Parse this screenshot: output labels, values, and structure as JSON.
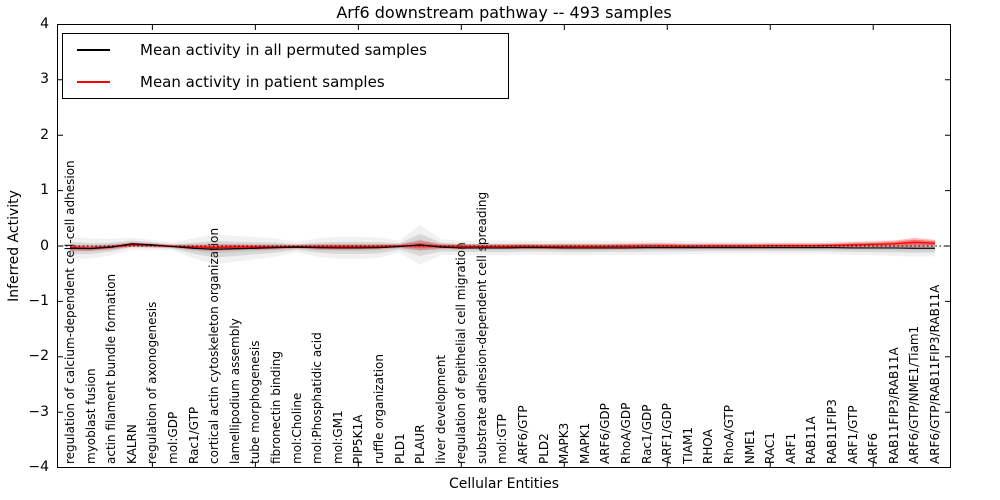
{
  "chart": {
    "yticks": [
      {
        "value": 4,
        "label": "4"
      },
      {
        "value": 3,
        "label": "3"
      },
      {
        "value": 2,
        "label": "2"
      },
      {
        "value": 1,
        "label": "1"
      },
      {
        "value": 0,
        "label": "0"
      },
      {
        "value": -1,
        "label": "−1"
      },
      {
        "value": -2,
        "label": "−2"
      },
      {
        "value": -3,
        "label": "−3"
      },
      {
        "value": -4,
        "label": "−4"
      }
    ]
  },
  "chart_data": {
    "type": "line",
    "title": "Arf6 downstream pathway -- 493 samples",
    "xlabel": "Cellular Entities",
    "ylabel": "Inferred Activity",
    "ylim": [
      -4,
      4
    ],
    "grid": false,
    "legend_position": "upper left",
    "x_major_tick_every": 5,
    "reference_line": {
      "y": 0,
      "style": "dotted",
      "color": "#000000"
    },
    "categories": [
      "regulation of calcium-dependent cell-cell adhesion",
      "myoblast fusion",
      "actin filament bundle formation",
      "KALRN",
      "regulation of axonogenesis",
      "mol:GDP",
      "Rac1/GTP",
      "cortical actin cytoskeleton organization",
      "lamellipodium assembly",
      "tube morphogenesis",
      "fibronectin binding",
      "mol:Choline",
      "mol:Phosphatidic acid",
      "mol:GM1",
      "PIP5K1A",
      "ruffle organization",
      "PLD1",
      "PLAUR",
      "liver development",
      "regulation of epithelial cell migration",
      "substrate adhesion-dependent cell spreading",
      "mol:GTP",
      "ARF6/GTP",
      "PLD2",
      "MAPK3",
      "MAPK1",
      "ARF6/GDP",
      "RhoA/GDP",
      "Rac1/GDP",
      "ARF1/GDP",
      "TIAM1",
      "RHOA",
      "RhoA/GTP",
      "NME1",
      "RAC1",
      "ARF1",
      "RAB11A",
      "RAB11FIP3",
      "ARF1/GTP",
      "ARF6",
      "RAB11FIP3/RAB11A",
      "ARF6/GTP/NME1/Tiam1",
      "ARF6/GTP/RAB11FIP3/RAB11A"
    ],
    "series": [
      {
        "name": "Mean activity in all permuted samples",
        "color": "#000000",
        "band_color": "#888888",
        "values": [
          -0.04,
          -0.045,
          -0.02,
          0.04,
          0.02,
          -0.01,
          -0.04,
          -0.06,
          -0.05,
          -0.04,
          -0.03,
          -0.02,
          -0.03,
          -0.035,
          -0.035,
          -0.03,
          -0.01,
          0.02,
          -0.02,
          -0.035,
          -0.035,
          -0.035,
          -0.03,
          -0.03,
          -0.035,
          -0.035,
          -0.035,
          -0.035,
          -0.03,
          -0.03,
          -0.03,
          -0.03,
          -0.03,
          -0.03,
          -0.03,
          -0.03,
          -0.03,
          -0.03,
          -0.035,
          -0.035,
          -0.035,
          -0.04,
          -0.04
        ],
        "band_halfwidth": [
          0.11,
          0.1,
          0.08,
          0.06,
          0.05,
          0.04,
          0.1,
          0.15,
          0.13,
          0.11,
          0.09,
          0.05,
          0.09,
          0.11,
          0.11,
          0.1,
          0.06,
          0.2,
          0.08,
          0.07,
          0.075,
          0.075,
          0.07,
          0.07,
          0.075,
          0.075,
          0.07,
          0.07,
          0.07,
          0.07,
          0.065,
          0.06,
          0.06,
          0.06,
          0.06,
          0.06,
          0.06,
          0.065,
          0.07,
          0.075,
          0.08,
          0.085,
          0.08
        ]
      },
      {
        "name": "Mean activity in patient samples",
        "color": "#ff0000",
        "band_color": "#ff0000",
        "values": [
          -0.03,
          -0.04,
          -0.015,
          0.02,
          0.01,
          -0.005,
          -0.02,
          -0.03,
          -0.02,
          -0.02,
          -0.015,
          -0.01,
          -0.015,
          -0.015,
          -0.015,
          -0.01,
          0.0,
          0.01,
          -0.005,
          -0.01,
          -0.01,
          -0.01,
          -0.005,
          -0.01,
          -0.01,
          -0.01,
          -0.01,
          -0.005,
          0.0,
          0.0,
          -0.005,
          0.0,
          0.0,
          0.0,
          0.005,
          0.005,
          0.005,
          0.01,
          0.02,
          0.03,
          0.04,
          0.065,
          0.05
        ],
        "band_halfwidth": [
          0.055,
          0.05,
          0.045,
          0.04,
          0.035,
          0.03,
          0.05,
          0.065,
          0.055,
          0.05,
          0.045,
          0.035,
          0.05,
          0.05,
          0.05,
          0.045,
          0.035,
          0.09,
          0.045,
          0.045,
          0.045,
          0.045,
          0.045,
          0.045,
          0.05,
          0.05,
          0.05,
          0.05,
          0.05,
          0.05,
          0.045,
          0.045,
          0.045,
          0.045,
          0.045,
          0.045,
          0.045,
          0.045,
          0.05,
          0.05,
          0.055,
          0.085,
          0.06
        ]
      }
    ]
  }
}
